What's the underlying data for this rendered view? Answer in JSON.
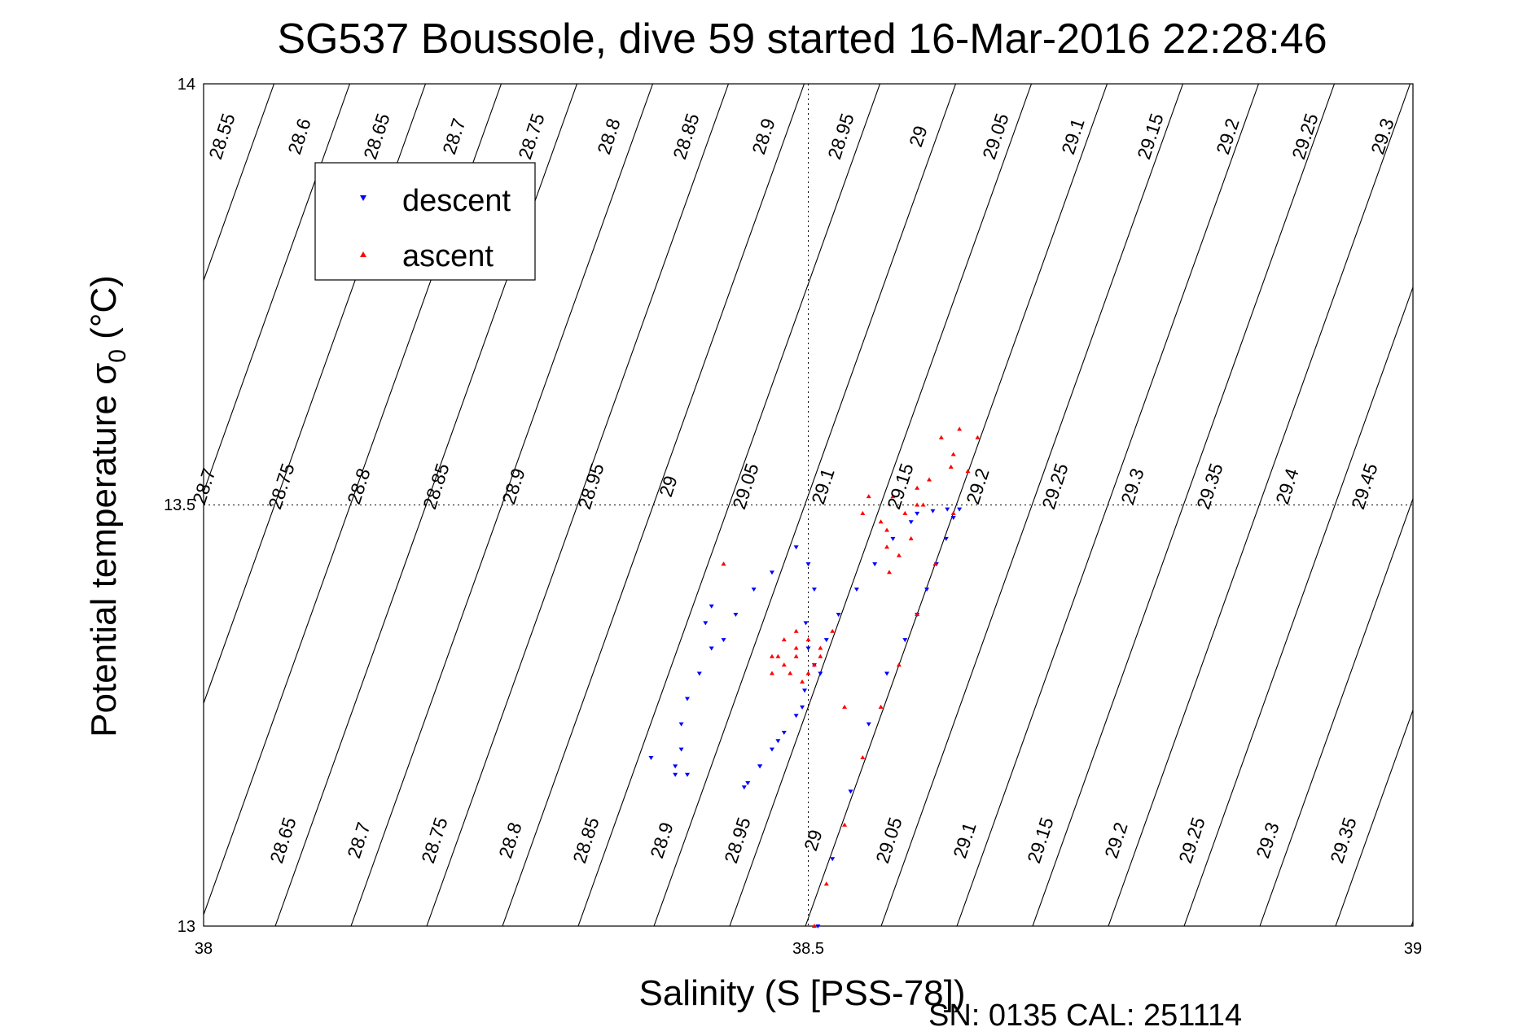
{
  "chart_data": {
    "type": "scatter",
    "title": "SG537 Boussole, dive 59 started 16-Mar-2016 22:28:46",
    "xlabel": "Salinity (S [PSS-78])",
    "ylabel_prefix": "Potential temperature σ",
    "ylabel_sub": "0",
    "ylabel_suffix": " (°C)",
    "xlim": [
      38,
      39
    ],
    "ylim": [
      13,
      14
    ],
    "xticks": [
      "38",
      "38.5",
      "39"
    ],
    "yticks": [
      "13",
      "13.5",
      "14"
    ],
    "grid": "dotted at 38.5 and 13.5",
    "legend": {
      "placement": "top-left",
      "entries": [
        {
          "label": "descent",
          "color": "#0000ff",
          "marker": "triangle-down"
        },
        {
          "label": "ascent",
          "color": "#ff0000",
          "marker": "triangle-up"
        }
      ]
    },
    "isopycnals": [
      "28.55",
      "28.6",
      "28.65",
      "28.7",
      "28.75",
      "28.8",
      "28.85",
      "28.9",
      "28.95",
      "29",
      "29.05",
      "29.1",
      "29.15",
      "29.2",
      "29.25",
      "29.3",
      "29.35",
      "29.4",
      "29.45"
    ],
    "series": [
      {
        "name": "descent",
        "color": "#0000ff",
        "points": [
          [
            38.508,
            13.0
          ],
          [
            38.52,
            13.08
          ],
          [
            38.535,
            13.16
          ],
          [
            38.55,
            13.24
          ],
          [
            38.565,
            13.3
          ],
          [
            38.58,
            13.34
          ],
          [
            38.59,
            13.37
          ],
          [
            38.598,
            13.4
          ],
          [
            38.606,
            13.43
          ],
          [
            38.614,
            13.46
          ],
          [
            38.62,
            13.485
          ],
          [
            38.625,
            13.495
          ],
          [
            38.615,
            13.495
          ],
          [
            38.603,
            13.493
          ],
          [
            38.59,
            13.49
          ],
          [
            38.585,
            13.48
          ],
          [
            38.57,
            13.46
          ],
          [
            38.555,
            13.43
          ],
          [
            38.54,
            13.4
          ],
          [
            38.525,
            13.37
          ],
          [
            38.515,
            13.34
          ],
          [
            38.505,
            13.31
          ],
          [
            38.497,
            13.28
          ],
          [
            38.49,
            13.25
          ],
          [
            38.475,
            13.22
          ],
          [
            38.46,
            13.19
          ],
          [
            38.447,
            13.165
          ],
          [
            38.45,
            13.17
          ],
          [
            38.46,
            13.19
          ],
          [
            38.47,
            13.21
          ],
          [
            38.48,
            13.23
          ],
          [
            38.495,
            13.26
          ],
          [
            38.51,
            13.3
          ],
          [
            38.5,
            13.33
          ],
          [
            38.498,
            13.36
          ],
          [
            38.505,
            13.4
          ],
          [
            38.5,
            13.43
          ],
          [
            38.49,
            13.45
          ],
          [
            38.47,
            13.42
          ],
          [
            38.455,
            13.4
          ],
          [
            38.44,
            13.37
          ],
          [
            38.43,
            13.34
          ],
          [
            38.42,
            13.33
          ],
          [
            38.41,
            13.3
          ],
          [
            38.4,
            13.27
          ],
          [
            38.395,
            13.24
          ],
          [
            38.395,
            13.21
          ],
          [
            38.39,
            13.19
          ],
          [
            38.39,
            13.18
          ],
          [
            38.4,
            13.18
          ],
          [
            38.37,
            13.2
          ],
          [
            38.42,
            13.38
          ],
          [
            38.415,
            13.36
          ]
        ]
      },
      {
        "name": "ascent",
        "color": "#ff0000",
        "points": [
          [
            38.505,
            13.0
          ],
          [
            38.515,
            13.05
          ],
          [
            38.53,
            13.12
          ],
          [
            38.545,
            13.2
          ],
          [
            38.56,
            13.26
          ],
          [
            38.575,
            13.31
          ],
          [
            38.59,
            13.37
          ],
          [
            38.605,
            13.43
          ],
          [
            38.62,
            13.49
          ],
          [
            38.632,
            13.54
          ],
          [
            38.64,
            13.58
          ],
          [
            38.625,
            13.59
          ],
          [
            38.61,
            13.58
          ],
          [
            38.62,
            13.56
          ],
          [
            38.618,
            13.545
          ],
          [
            38.6,
            13.53
          ],
          [
            38.595,
            13.5
          ],
          [
            38.585,
            13.46
          ],
          [
            38.575,
            13.44
          ],
          [
            38.567,
            13.42
          ],
          [
            38.565,
            13.45
          ],
          [
            38.56,
            13.48
          ],
          [
            38.57,
            13.51
          ],
          [
            38.545,
            13.49
          ],
          [
            38.55,
            13.51
          ],
          [
            38.565,
            13.47
          ],
          [
            38.58,
            13.49
          ],
          [
            38.59,
            13.5
          ],
          [
            38.59,
            13.52
          ],
          [
            38.49,
            13.35
          ],
          [
            38.49,
            13.33
          ],
          [
            38.48,
            13.31
          ],
          [
            38.47,
            13.3
          ],
          [
            38.49,
            13.32
          ],
          [
            38.5,
            13.34
          ],
          [
            38.51,
            13.33
          ],
          [
            38.495,
            13.29
          ],
          [
            38.485,
            13.3
          ],
          [
            38.48,
            13.34
          ],
          [
            38.5,
            13.3
          ],
          [
            38.505,
            13.31
          ],
          [
            38.52,
            13.35
          ],
          [
            38.475,
            13.32
          ],
          [
            38.43,
            13.43
          ],
          [
            38.53,
            13.26
          ],
          [
            38.47,
            13.32
          ],
          [
            38.51,
            13.32
          ]
        ]
      }
    ]
  },
  "footer": "SN: 0135  CAL: 251114"
}
